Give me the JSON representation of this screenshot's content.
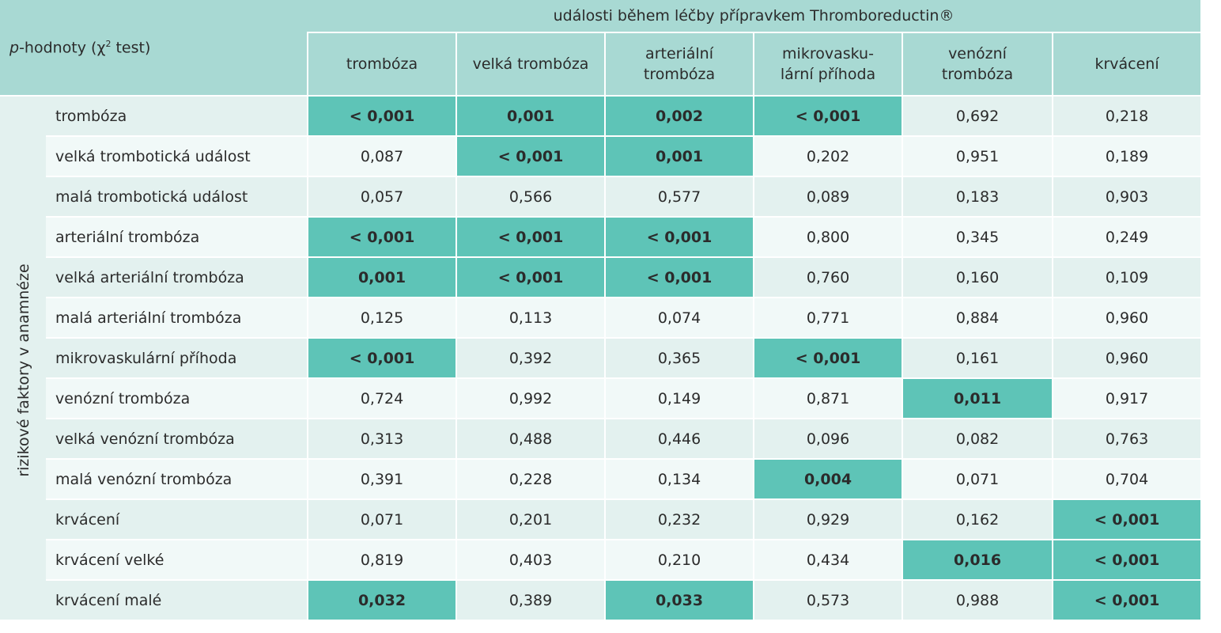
{
  "header": {
    "corner_prefix": "p",
    "corner_mid": "-hodnoty (χ",
    "corner_sup": "2",
    "corner_suffix": " test)",
    "group_title": "události během léčby přípravkem Thromboreductin®",
    "columns": [
      [
        "trombóza",
        ""
      ],
      [
        "velká trombóza",
        ""
      ],
      [
        "arteriální",
        "trombóza"
      ],
      [
        "mikrovasku-",
        "lární příhoda"
      ],
      [
        "venózní",
        "trombóza"
      ],
      [
        "krvácení",
        ""
      ]
    ]
  },
  "side_label": "rizikové faktory v anamnéze",
  "rows": [
    {
      "label": "trombóza",
      "values": [
        "< 0,001",
        "0,001",
        "0,002",
        "< 0,001",
        "0,692",
        "0,218"
      ],
      "highlight": [
        1,
        1,
        1,
        1,
        0,
        0
      ]
    },
    {
      "label": "velká trombotická událost",
      "values": [
        "0,087",
        "< 0,001",
        "0,001",
        "0,202",
        "0,951",
        "0,189"
      ],
      "highlight": [
        0,
        1,
        1,
        0,
        0,
        0
      ]
    },
    {
      "label": "malá trombotická událost",
      "values": [
        "0,057",
        "0,566",
        "0,577",
        "0,089",
        "0,183",
        "0,903"
      ],
      "highlight": [
        0,
        0,
        0,
        0,
        0,
        0
      ]
    },
    {
      "label": "arteriální trombóza",
      "values": [
        "< 0,001",
        "< 0,001",
        "< 0,001",
        "0,800",
        "0,345",
        "0,249"
      ],
      "highlight": [
        1,
        1,
        1,
        0,
        0,
        0
      ]
    },
    {
      "label": "velká arteriální trombóza",
      "values": [
        "0,001",
        "< 0,001",
        "< 0,001",
        "0,760",
        "0,160",
        "0,109"
      ],
      "highlight": [
        1,
        1,
        1,
        0,
        0,
        0
      ]
    },
    {
      "label": "malá arteriální trombóza",
      "values": [
        "0,125",
        "0,113",
        "0,074",
        "0,771",
        "0,884",
        "0,960"
      ],
      "highlight": [
        0,
        0,
        0,
        0,
        0,
        0
      ]
    },
    {
      "label": "mikrovaskulární příhoda",
      "values": [
        "< 0,001",
        "0,392",
        "0,365",
        "< 0,001",
        "0,161",
        "0,960"
      ],
      "highlight": [
        1,
        0,
        0,
        1,
        0,
        0
      ]
    },
    {
      "label": "venózní trombóza",
      "values": [
        "0,724",
        "0,992",
        "0,149",
        "0,871",
        "0,011",
        "0,917"
      ],
      "highlight": [
        0,
        0,
        0,
        0,
        1,
        0
      ]
    },
    {
      "label": "velká venózní trombóza",
      "values": [
        "0,313",
        "0,488",
        "0,446",
        "0,096",
        "0,082",
        "0,763"
      ],
      "highlight": [
        0,
        0,
        0,
        0,
        0,
        0
      ]
    },
    {
      "label": "malá venózní trombóza",
      "values": [
        "0,391",
        "0,228",
        "0,134",
        "0,004",
        "0,071",
        "0,704"
      ],
      "highlight": [
        0,
        0,
        0,
        1,
        0,
        0
      ]
    },
    {
      "label": "krvácení",
      "values": [
        "0,071",
        "0,201",
        "0,232",
        "0,929",
        "0,162",
        "< 0,001"
      ],
      "highlight": [
        0,
        0,
        0,
        0,
        0,
        1
      ]
    },
    {
      "label": "krvácení velké",
      "values": [
        "0,819",
        "0,403",
        "0,210",
        "0,434",
        "0,016",
        "< 0,001"
      ],
      "highlight": [
        0,
        0,
        0,
        0,
        1,
        1
      ]
    },
    {
      "label": "krvácení malé",
      "values": [
        "0,032",
        "0,389",
        "0,033",
        "0,573",
        "0,988",
        "< 0,001"
      ],
      "highlight": [
        1,
        0,
        1,
        0,
        0,
        1
      ]
    }
  ],
  "colors": {
    "header_bg": "#a8d9d3",
    "highlight_bg": "#5ec4b7",
    "row_bg_a": "#e3f1ef",
    "row_bg_b": "#f1f9f8"
  }
}
